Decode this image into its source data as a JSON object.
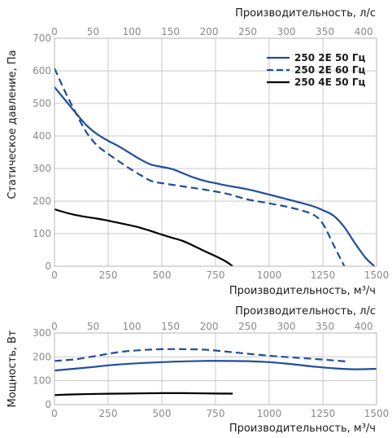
{
  "colors": {
    "series_blue": "#1f4e9c",
    "series_black": "#000000",
    "grid": "#c8c8c8",
    "tick_text": "#8a8a8a"
  },
  "chart_data": [
    {
      "type": "line",
      "xlabel": "Производительность, м³/ч",
      "x2label": "Производительность, л/с",
      "ylabel": "Статическое давление, Па",
      "xlim": [
        0,
        1500
      ],
      "x2lim": [
        0,
        416.67
      ],
      "ylim": [
        0,
        700
      ],
      "x_ticks": [
        0,
        250,
        500,
        750,
        1000,
        1250,
        1500
      ],
      "x2_ticks": [
        0,
        50,
        100,
        150,
        200,
        250,
        300,
        350,
        400
      ],
      "y_ticks": [
        0,
        100,
        200,
        300,
        400,
        500,
        600,
        700
      ],
      "grid": true,
      "legend_position": "top-right",
      "series": [
        {
          "name": "250 2E 50 Гц",
          "style": "solid",
          "color": "#1f4e9c",
          "x": [
            0,
            50,
            100,
            150,
            200,
            250,
            300,
            350,
            400,
            450,
            500,
            550,
            600,
            650,
            700,
            750,
            800,
            900,
            1000,
            1100,
            1200,
            1250,
            1300,
            1350,
            1400,
            1450,
            1490
          ],
          "y": [
            550,
            510,
            470,
            432,
            405,
            385,
            368,
            348,
            328,
            312,
            305,
            298,
            285,
            272,
            262,
            255,
            248,
            236,
            220,
            203,
            185,
            172,
            155,
            120,
            70,
            25,
            0
          ]
        },
        {
          "name": "250 2E 60 Гц",
          "style": "dashed",
          "color": "#1f4e9c",
          "x": [
            0,
            50,
            100,
            150,
            200,
            250,
            300,
            350,
            400,
            450,
            500,
            600,
            700,
            800,
            900,
            1000,
            1100,
            1200,
            1250,
            1300,
            1350
          ],
          "y": [
            608,
            535,
            470,
            410,
            370,
            345,
            322,
            300,
            280,
            262,
            255,
            245,
            235,
            223,
            205,
            193,
            180,
            160,
            130,
            65,
            0
          ]
        },
        {
          "name": "250 4E 50 Гц",
          "style": "solid",
          "color": "#000000",
          "x": [
            0,
            50,
            100,
            150,
            200,
            250,
            300,
            350,
            400,
            450,
            500,
            550,
            600,
            650,
            700,
            750,
            800,
            830
          ],
          "y": [
            175,
            165,
            157,
            151,
            146,
            140,
            133,
            126,
            118,
            108,
            97,
            87,
            77,
            62,
            46,
            31,
            14,
            0
          ]
        }
      ]
    },
    {
      "type": "line",
      "xlabel": "Производительность, м³/ч",
      "x2label": "Производительность, л/с",
      "ylabel": "Мощность, Вт",
      "xlim": [
        0,
        1500
      ],
      "x2lim": [
        0,
        416.67
      ],
      "ylim": [
        0,
        300
      ],
      "x_ticks": [
        0,
        250,
        500,
        750,
        1000,
        1250,
        1500
      ],
      "x2_ticks": [
        0,
        50,
        100,
        150,
        200,
        250,
        300,
        350,
        400
      ],
      "y_ticks": [
        0,
        100,
        200,
        300
      ],
      "grid": true,
      "series": [
        {
          "style": "solid",
          "color": "#1f4e9c",
          "x": [
            0,
            150,
            300,
            500,
            700,
            900,
            1000,
            1100,
            1200,
            1300,
            1400,
            1500
          ],
          "y": [
            143,
            155,
            168,
            178,
            183,
            182,
            178,
            170,
            160,
            152,
            148,
            150
          ]
        },
        {
          "style": "dashed",
          "color": "#1f4e9c",
          "x": [
            0,
            100,
            200,
            300,
            400,
            500,
            600,
            700,
            800,
            900,
            1000,
            1100,
            1200,
            1300,
            1370
          ],
          "y": [
            183,
            190,
            205,
            220,
            228,
            232,
            232,
            230,
            222,
            213,
            205,
            198,
            192,
            185,
            180
          ]
        },
        {
          "style": "solid",
          "color": "#000000",
          "x": [
            0,
            100,
            200,
            300,
            400,
            500,
            600,
            700,
            830
          ],
          "y": [
            40,
            43,
            45,
            46,
            47,
            48,
            48,
            47,
            46
          ]
        }
      ]
    }
  ]
}
